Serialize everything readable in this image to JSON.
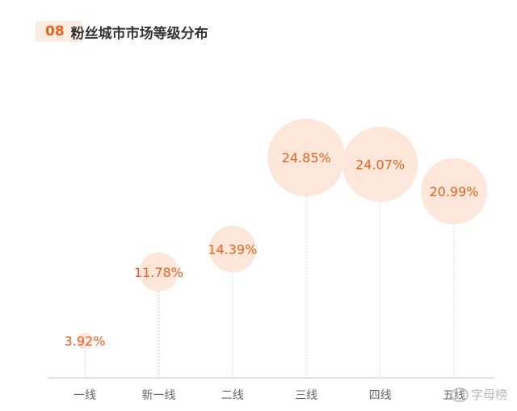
{
  "header": {
    "number": "08",
    "title": "粉丝城市市场等级分布"
  },
  "colors": {
    "accent": "#e8611f",
    "bubble": "#fde7da",
    "axis": "#c8c8c8",
    "label": "#666666"
  },
  "watermark": {
    "text": "字母榜",
    "icon": "weibo-icon"
  },
  "chart_data": {
    "type": "bubble",
    "title": "粉丝城市市场等级分布",
    "categories": [
      "一线",
      "新一线",
      "二线",
      "三线",
      "四线",
      "五线"
    ],
    "values": [
      3.92,
      11.78,
      14.39,
      24.85,
      24.07,
      20.99
    ],
    "labels": [
      "3.92%",
      "11.78%",
      "14.39%",
      "24.85%",
      "24.07%",
      "20.99%"
    ],
    "ylim": [
      0,
      30
    ],
    "grid": false,
    "legend": "none"
  }
}
